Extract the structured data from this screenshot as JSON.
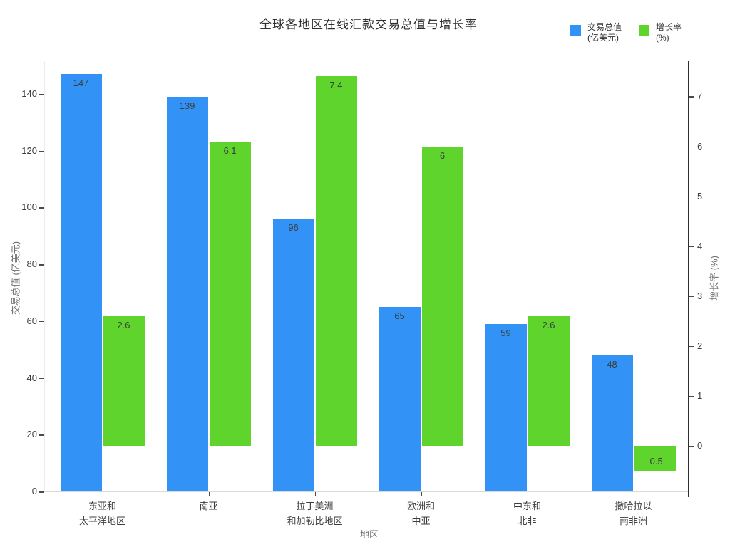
{
  "title": "全球各地区在线汇款交易总值与增长率",
  "legend": [
    {
      "label": "交易总值\n(亿美元)",
      "color": "#3292F5"
    },
    {
      "label": "增长率\n(%)",
      "color": "#5ED42C"
    }
  ],
  "colors": {
    "transaction_bar": "#3292F5",
    "growth_bar": "#5ED42C",
    "right_axis_line": "#2f2f2f",
    "bottom_axis_line": "#d9d9d9"
  },
  "chart_data": {
    "type": "bar",
    "title": "全球各地区在线汇款交易总值与增长率",
    "categories": [
      [
        "东亚和",
        "太平洋地区"
      ],
      [
        "南亚"
      ],
      [
        "拉丁美洲",
        "和加勒比地区"
      ],
      [
        "欧洲和",
        "中亚"
      ],
      [
        "中东和",
        "北非"
      ],
      [
        "撒哈拉以",
        "南非洲"
      ]
    ],
    "series": [
      {
        "name": "交易总值 (亿美元)",
        "axis": "left",
        "color": "#3292F5",
        "values": [
          147,
          139,
          96,
          65,
          59,
          48
        ]
      },
      {
        "name": "增长率 (%)",
        "axis": "right",
        "color": "#5ED42C",
        "values": [
          2.6,
          6.1,
          7.4,
          6,
          2.6,
          -0.5
        ]
      }
    ],
    "xlabel": "地区",
    "ylabel_left": "交易总值 (亿美元)",
    "ylabel_right": "增长率 (%)",
    "left_axis": {
      "ticks": [
        0,
        20,
        40,
        60,
        80,
        100,
        120,
        140
      ],
      "range": [
        0,
        151.8
      ]
    },
    "right_axis": {
      "ticks": [
        0,
        1,
        2,
        3,
        4,
        5,
        6,
        7
      ],
      "range": [
        -0.91,
        7.72
      ]
    },
    "grid": false,
    "legend_position": "top-right",
    "bar_value_labels": true
  }
}
